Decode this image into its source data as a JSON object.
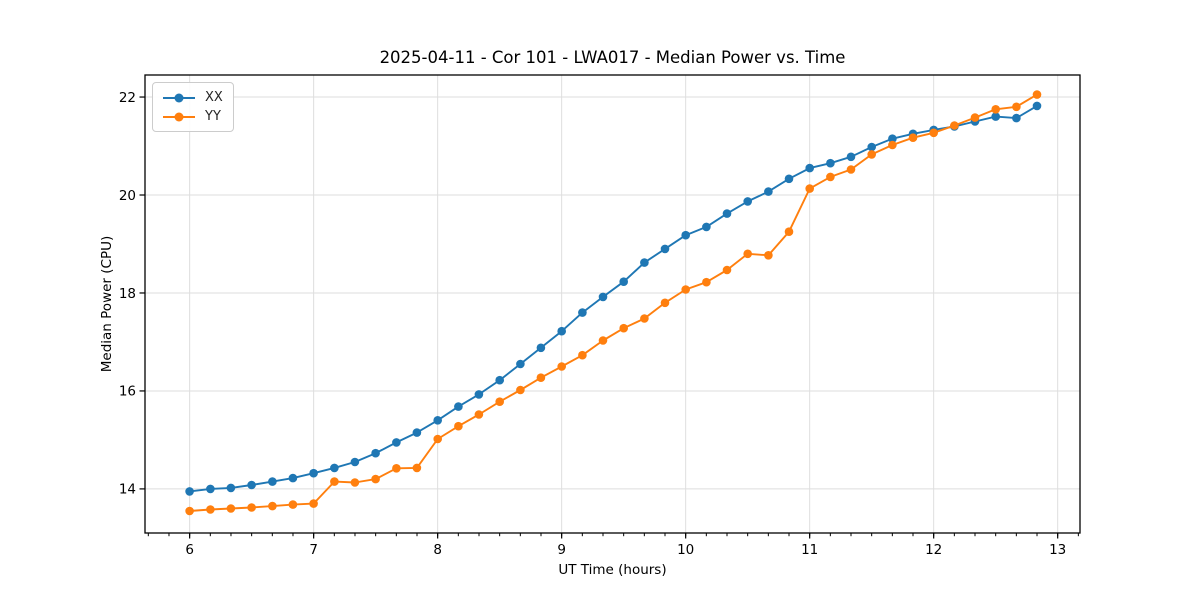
{
  "chart_data": {
    "type": "line",
    "title": "2025-04-11 - Cor 101 - LWA017 - Median Power vs. Time",
    "xlabel": "UT Time (hours)",
    "ylabel": "Median Power (CPU)",
    "xlim": [
      5.64,
      13.18
    ],
    "ylim": [
      13.1,
      22.45
    ],
    "xticks": [
      6,
      7,
      8,
      9,
      10,
      11,
      12,
      13
    ],
    "yticks": [
      14,
      16,
      18,
      20,
      22
    ],
    "x_minor_tick_step": 0.166667,
    "grid": true,
    "grid_color": "#dedede",
    "spine_color": "#000000",
    "legend_position": "upper-left",
    "x": [
      6.0,
      6.167,
      6.333,
      6.5,
      6.667,
      6.833,
      7.0,
      7.167,
      7.333,
      7.5,
      7.667,
      7.833,
      8.0,
      8.167,
      8.333,
      8.5,
      8.667,
      8.833,
      9.0,
      9.167,
      9.333,
      9.5,
      9.667,
      9.833,
      10.0,
      10.167,
      10.333,
      10.5,
      10.667,
      10.833,
      11.0,
      11.167,
      11.333,
      11.5,
      11.667,
      11.833,
      12.0,
      12.167,
      12.333,
      12.5,
      12.667,
      12.833
    ],
    "series": [
      {
        "name": "XX",
        "color": "#1f77b4",
        "values": [
          13.95,
          14.0,
          14.02,
          14.08,
          14.15,
          14.22,
          14.32,
          14.43,
          14.55,
          14.73,
          14.95,
          15.15,
          15.4,
          15.68,
          15.93,
          16.22,
          16.55,
          16.88,
          17.22,
          17.6,
          17.92,
          18.23,
          18.62,
          18.9,
          19.18,
          19.35,
          19.62,
          19.87,
          20.07,
          20.33,
          20.55,
          20.65,
          20.78,
          20.98,
          21.15,
          21.25,
          21.33,
          21.4,
          21.5,
          21.6,
          21.57,
          21.82
        ]
      },
      {
        "name": "YY",
        "color": "#ff7f0e",
        "values": [
          13.55,
          13.58,
          13.6,
          13.62,
          13.65,
          13.68,
          13.7,
          14.15,
          14.13,
          14.2,
          14.42,
          14.43,
          15.02,
          15.28,
          15.52,
          15.78,
          16.02,
          16.27,
          16.5,
          16.73,
          17.03,
          17.28,
          17.48,
          17.8,
          18.07,
          18.22,
          18.47,
          18.8,
          18.77,
          19.25,
          20.13,
          20.37,
          20.52,
          20.83,
          21.02,
          21.17,
          21.27,
          21.42,
          21.58,
          21.75,
          21.8,
          22.05
        ]
      }
    ]
  }
}
